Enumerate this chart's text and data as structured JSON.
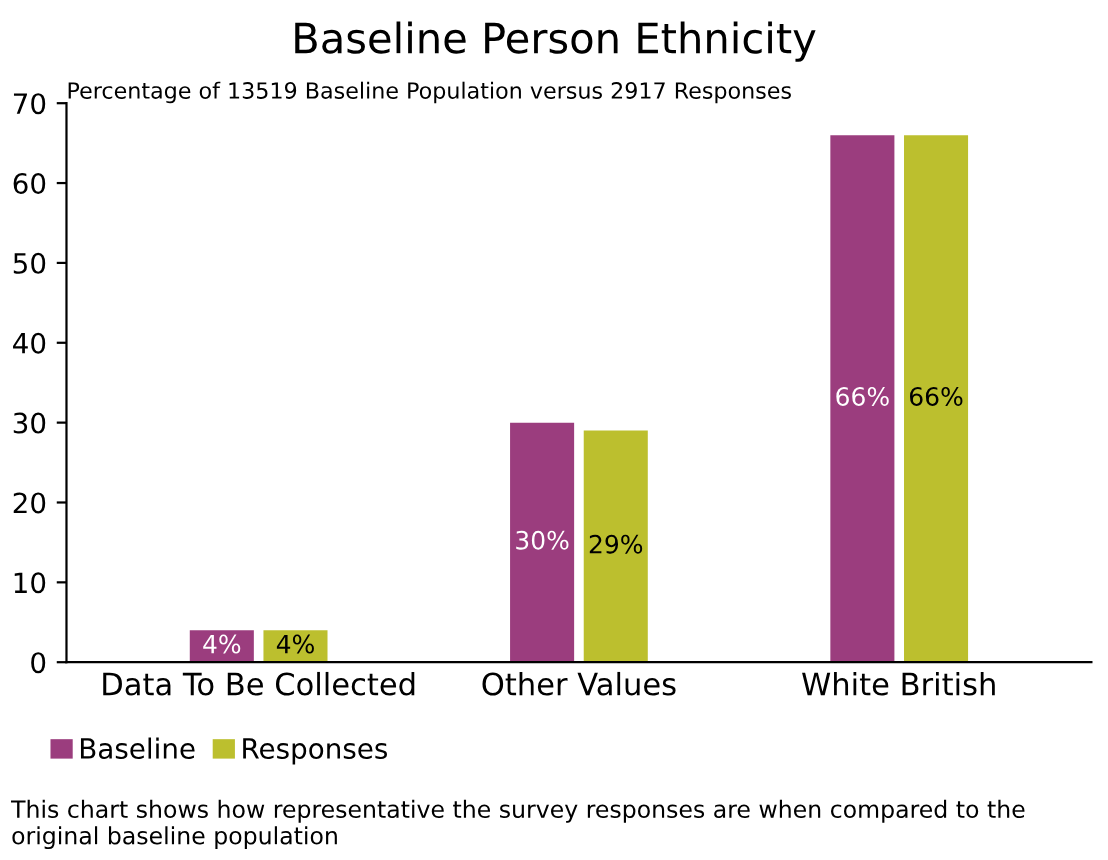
{
  "chart_data": {
    "type": "bar",
    "title": "Baseline Person Ethnicity",
    "subtitle": "Percentage of 13519 Baseline Population versus 2917 Responses",
    "categories": [
      "Data To Be Collected",
      "Other Values",
      "White British"
    ],
    "series": [
      {
        "name": "Baseline",
        "color": "#9b3d7e",
        "values": [
          4,
          30,
          66
        ],
        "value_labels": [
          "4%",
          "30%",
          "66%"
        ]
      },
      {
        "name": "Responses",
        "color": "#bcbf2e",
        "values": [
          4,
          29,
          66
        ],
        "value_labels": [
          "4%",
          "29%",
          "66%"
        ]
      }
    ],
    "ylim": [
      0,
      70
    ],
    "yticks": [
      0,
      10,
      20,
      30,
      40,
      50,
      60,
      70
    ],
    "grid": false,
    "legend": "bottom left",
    "annotations": [
      "This chart shows how representative the survey responses are when compared to the original baseline population"
    ]
  }
}
